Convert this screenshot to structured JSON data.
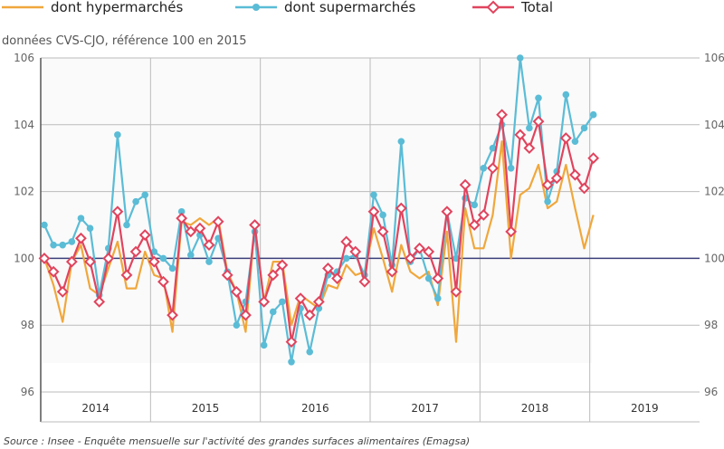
{
  "chart_data": {
    "type": "line",
    "subtitle": "données CVS-CJO, référence 100 en 2015",
    "source": "Source : Insee - Enquête mensuelle sur l'activité des grandes surfaces alimentaires (Emagsa)",
    "ylim": [
      96,
      106
    ],
    "yticks": [
      "96",
      "98",
      "100",
      "102",
      "104",
      "106"
    ],
    "ytick_values": [
      96,
      98,
      100,
      102,
      104,
      106
    ],
    "years": [
      "2014",
      "2015",
      "2016",
      "2017",
      "2018",
      "2019"
    ],
    "start": "2014-01",
    "frequency": "monthly",
    "reference_line": 100,
    "legend_position": "top",
    "series": [
      {
        "name": "dont hypermarchés",
        "color": "#f0a73c",
        "marker": "none",
        "values": [
          100.0,
          99.2,
          98.1,
          99.9,
          100.4,
          99.1,
          98.9,
          99.7,
          100.5,
          99.1,
          99.1,
          100.2,
          99.5,
          99.4,
          97.8,
          101.1,
          101.0,
          101.2,
          101.0,
          101.2,
          99.6,
          99.0,
          97.8,
          101.0,
          98.7,
          99.9,
          99.9,
          98.0,
          98.9,
          98.7,
          98.5,
          99.2,
          99.1,
          99.8,
          99.5,
          99.6,
          100.9,
          100.0,
          99.0,
          100.4,
          99.6,
          99.4,
          99.6,
          98.6,
          100.8,
          97.5,
          101.5,
          100.3,
          100.3,
          101.3,
          103.5,
          100.0,
          101.9,
          102.1,
          102.8,
          101.5,
          101.7,
          102.8,
          101.5,
          100.3,
          101.3
        ]
      },
      {
        "name": "dont supermarchés",
        "color": "#5bbcd6",
        "marker": "circle",
        "values": [
          101.0,
          100.4,
          100.4,
          100.5,
          101.2,
          100.9,
          98.9,
          100.3,
          103.7,
          101.0,
          101.7,
          101.9,
          100.2,
          100.0,
          99.7,
          101.4,
          100.1,
          100.7,
          99.9,
          100.6,
          99.6,
          98.0,
          98.7,
          100.8,
          97.4,
          98.4,
          98.7,
          96.9,
          98.5,
          97.2,
          98.5,
          99.5,
          99.6,
          100.0,
          100.1,
          99.5,
          101.9,
          101.3,
          99.8,
          103.5,
          99.9,
          100.3,
          99.4,
          98.8,
          101.4,
          100.0,
          101.8,
          101.6,
          102.7,
          103.3,
          104.0,
          102.7,
          106.0,
          103.9,
          104.8,
          101.7,
          102.6,
          104.9,
          103.5,
          103.9,
          104.3
        ]
      },
      {
        "name": "Total",
        "color": "#e0445e",
        "marker": "diamond",
        "values": [
          100.0,
          99.6,
          99.0,
          99.9,
          100.6,
          99.9,
          98.7,
          100.0,
          101.4,
          99.5,
          100.2,
          100.7,
          99.9,
          99.3,
          98.3,
          101.2,
          100.8,
          100.9,
          100.4,
          101.1,
          99.5,
          99.0,
          98.3,
          101.0,
          98.7,
          99.5,
          99.8,
          97.5,
          98.8,
          98.3,
          98.7,
          99.7,
          99.4,
          100.5,
          100.2,
          99.3,
          101.4,
          100.8,
          99.6,
          101.5,
          100.0,
          100.3,
          100.2,
          99.4,
          101.4,
          99.0,
          102.2,
          101.0,
          101.3,
          102.7,
          104.3,
          100.8,
          103.7,
          103.3,
          104.1,
          102.2,
          102.4,
          103.6,
          102.5,
          102.1,
          103.0
        ]
      }
    ]
  }
}
